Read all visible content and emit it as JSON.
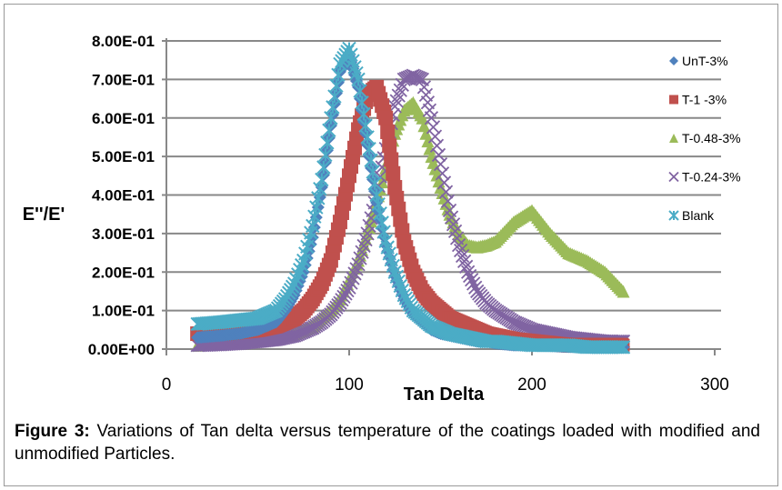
{
  "chart_data": {
    "type": "scatter",
    "xlabel": "Tan Delta",
    "ylabel": "E''/E'",
    "xlim": [
      0,
      300
    ],
    "ylim": [
      0,
      0.8
    ],
    "x_ticks": [
      "0",
      "100",
      "200",
      "300"
    ],
    "y_ticks": [
      "0.00E+00",
      "1.00E-01",
      "2.00E-01",
      "3.00E-01",
      "4.00E-01",
      "5.00E-01",
      "6.00E-01",
      "7.00E-01",
      "8.00E-01"
    ],
    "grid": true,
    "legend_position": "right",
    "x": [
      17,
      30,
      40,
      50,
      60,
      65,
      70,
      75,
      80,
      85,
      90,
      95,
      100,
      105,
      110,
      115,
      120,
      125,
      130,
      135,
      140,
      145,
      150,
      155,
      160,
      165,
      170,
      175,
      180,
      190,
      200,
      210,
      220,
      230,
      240,
      250
    ],
    "series": [
      {
        "name": "T-0.48-3%",
        "marker": "triangle",
        "color": "#9BBB59",
        "values": [
          0.01,
          0.015,
          0.02,
          0.025,
          0.03,
          0.035,
          0.04,
          0.05,
          0.06,
          0.08,
          0.1,
          0.13,
          0.18,
          0.23,
          0.3,
          0.38,
          0.47,
          0.56,
          0.62,
          0.64,
          0.6,
          0.5,
          0.42,
          0.35,
          0.3,
          0.27,
          0.265,
          0.27,
          0.28,
          0.33,
          0.36,
          0.3,
          0.25,
          0.23,
          0.2,
          0.15
        ]
      },
      {
        "name": "T-0.24-3%",
        "marker": "x",
        "color": "#8064A2",
        "values": [
          0.01,
          0.012,
          0.015,
          0.02,
          0.025,
          0.03,
          0.035,
          0.045,
          0.055,
          0.07,
          0.09,
          0.12,
          0.16,
          0.22,
          0.3,
          0.4,
          0.52,
          0.63,
          0.7,
          0.71,
          0.7,
          0.6,
          0.48,
          0.36,
          0.27,
          0.2,
          0.15,
          0.12,
          0.1,
          0.07,
          0.05,
          0.04,
          0.03,
          0.025,
          0.02,
          0.02
        ]
      },
      {
        "name": "T-1 -3%",
        "marker": "square",
        "color": "#C0504D",
        "values": [
          0.04,
          0.04,
          0.045,
          0.05,
          0.06,
          0.07,
          0.08,
          0.1,
          0.13,
          0.17,
          0.23,
          0.33,
          0.45,
          0.57,
          0.66,
          0.68,
          0.6,
          0.42,
          0.28,
          0.2,
          0.15,
          0.12,
          0.1,
          0.08,
          0.07,
          0.06,
          0.05,
          0.04,
          0.035,
          0.025,
          0.02,
          0.015,
          0.01,
          0.01,
          0.01,
          0.01
        ]
      },
      {
        "name": "UnT-3%",
        "marker": "diamond",
        "color": "#4F81BD",
        "values": [
          0.03,
          0.035,
          0.04,
          0.05,
          0.07,
          0.1,
          0.14,
          0.2,
          0.29,
          0.42,
          0.58,
          0.72,
          0.76,
          0.68,
          0.53,
          0.38,
          0.27,
          0.19,
          0.13,
          0.09,
          0.07,
          0.05,
          0.04,
          0.035,
          0.03,
          0.025,
          0.02,
          0.02,
          0.015,
          0.01,
          0.01,
          0.008,
          0.006,
          0.005,
          0.005,
          0.005
        ]
      },
      {
        "name": "Blank",
        "marker": "star",
        "color": "#4BACC6",
        "values": [
          0.065,
          0.07,
          0.075,
          0.08,
          0.1,
          0.13,
          0.17,
          0.23,
          0.32,
          0.44,
          0.6,
          0.74,
          0.78,
          0.7,
          0.55,
          0.4,
          0.28,
          0.2,
          0.14,
          0.1,
          0.08,
          0.06,
          0.05,
          0.04,
          0.035,
          0.03,
          0.025,
          0.02,
          0.02,
          0.015,
          0.01,
          0.01,
          0.01,
          0.005,
          0.005,
          0.005
        ]
      }
    ],
    "legend_order": [
      "UnT-3%",
      "T-1 -3%",
      "T-0.48-3%",
      "T-0.24-3%",
      "Blank"
    ]
  },
  "caption": {
    "label": "Figure 3:",
    "text": " Variations of Tan delta versus temperature of the coatings loaded with modified and unmodified Particles."
  }
}
